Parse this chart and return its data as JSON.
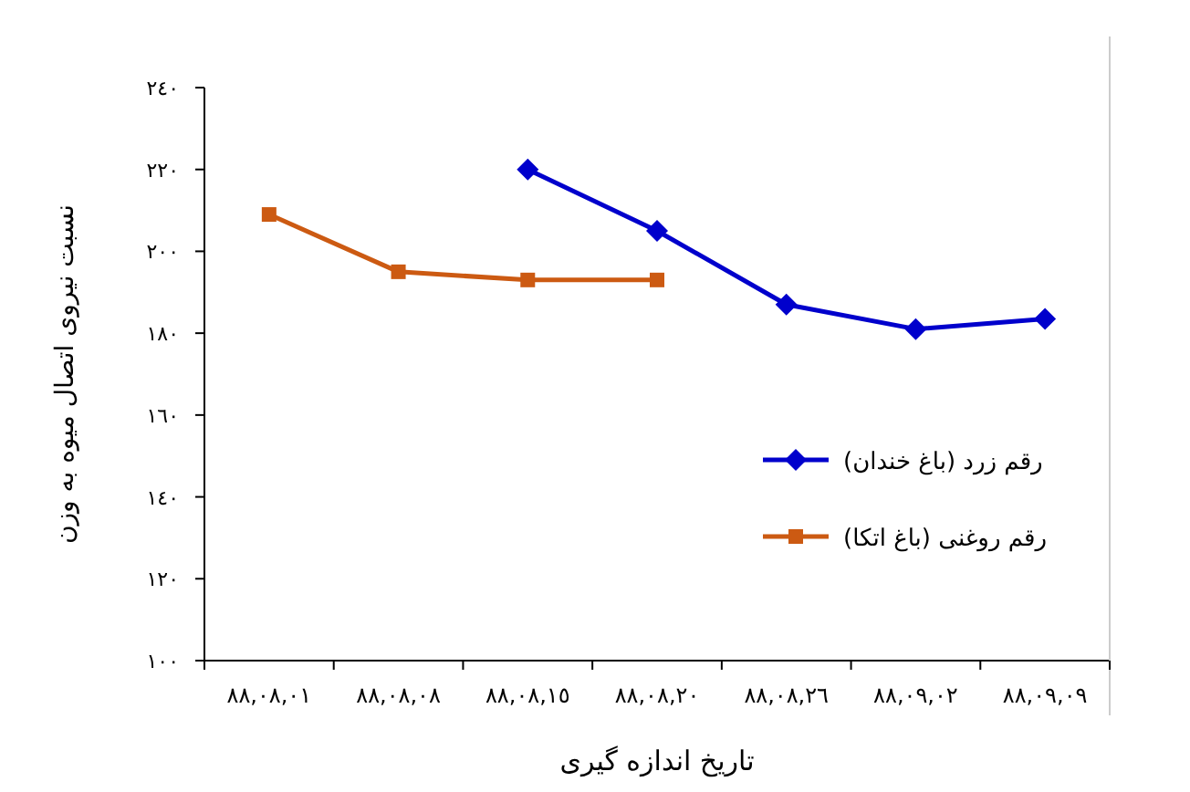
{
  "chart_data": {
    "type": "line",
    "xlabel": "تاریخ اندازه گیری",
    "ylabel": "نسبت نیروی اتصال میوه به وزن",
    "categories": [
      "٨٨,٠٨,٠١",
      "٨٨,٠٨,٠٨",
      "٨٨,٠٨,١٥",
      "٨٨,٠٨,٢٠",
      "٨٨,٠٨,٢٦",
      "٨٨,٠٩,٠٢",
      "٨٨,٠٩,٠٩"
    ],
    "series": [
      {
        "name": "رقم زرد (باغ خندان)",
        "color": "#0000cc",
        "marker": "diamond",
        "values": [
          null,
          null,
          220,
          205,
          187,
          181,
          183.5
        ]
      },
      {
        "name": "رقم روغنی (باغ اتکا)",
        "color": "#cc5a12",
        "marker": "square",
        "values": [
          209,
          195,
          193,
          193,
          null,
          null,
          null
        ]
      }
    ],
    "ylim": [
      100,
      240
    ],
    "yticks": [
      {
        "value": 100,
        "label": "١٠٠"
      },
      {
        "value": 120,
        "label": "١٢٠"
      },
      {
        "value": 140,
        "label": "١٤٠"
      },
      {
        "value": 160,
        "label": "١٦٠"
      },
      {
        "value": 180,
        "label": "١٨٠"
      },
      {
        "value": 200,
        "label": "٢٠٠"
      },
      {
        "value": 220,
        "label": "٢٢٠"
      },
      {
        "value": 240,
        "label": "٢٤٠"
      }
    ],
    "grid": false,
    "legend": "right",
    "line_style": "solid"
  }
}
